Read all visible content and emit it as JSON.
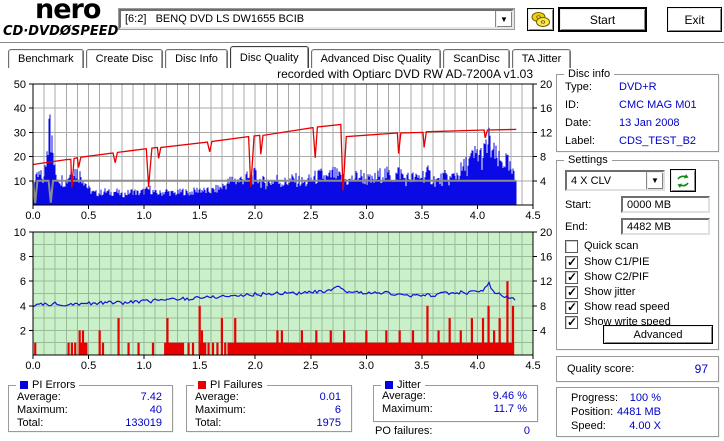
{
  "header": {
    "logo_line1": "nero",
    "logo_line2": "CD·DVDØSPEED",
    "drive": "[6:2]   BENQ DVD LS DW1655 BCIB",
    "start_button": "Start",
    "exit_button": "Exit"
  },
  "tabs": {
    "items": [
      "Benchmark",
      "Create Disc",
      "Disc Info",
      "Disc Quality",
      "Advanced Disc Quality",
      "ScanDisc",
      "TA Jitter"
    ],
    "active": "Disc Quality"
  },
  "chart_header": "recorded with Optiarc DVD RW AD-7200A   v1.03",
  "disc_info": {
    "title": "Disc info",
    "rows": [
      {
        "label": "Type:",
        "value": "DVD+R"
      },
      {
        "label": "ID:",
        "value": "CMC MAG M01"
      },
      {
        "label": "Date:",
        "value": "13 Jan 2008"
      },
      {
        "label": "Label:",
        "value": "CDS_TEST_B2"
      }
    ]
  },
  "settings": {
    "title": "Settings",
    "speed_select": "4 X CLV",
    "start_label": "Start:",
    "start_value": "0000 MB",
    "end_label": "End:",
    "end_value": "4482 MB",
    "checkboxes": [
      {
        "label": "Quick scan",
        "checked": false
      },
      {
        "label": "Show C1/PIE",
        "checked": true
      },
      {
        "label": "Show C2/PIF",
        "checked": true
      },
      {
        "label": "Show jitter",
        "checked": true
      },
      {
        "label": "Show read speed",
        "checked": true
      },
      {
        "label": "Show write speed",
        "checked": true
      }
    ],
    "advanced_button": "Advanced"
  },
  "quality": {
    "label": "Quality score:",
    "value": "97"
  },
  "stats": {
    "pi_errors": {
      "title": "PI Errors",
      "color": "#0000e0",
      "avg_label": "Average:",
      "avg": "7.42",
      "max_label": "Maximum:",
      "max": "40",
      "total_label": "Total:",
      "total": "133019"
    },
    "pi_failures": {
      "title": "PI Failures",
      "color": "#e80000",
      "avg_label": "Average:",
      "avg": "0.01",
      "max_label": "Maximum:",
      "max": "6",
      "total_label": "Total:",
      "total": "1975"
    },
    "jitter": {
      "title": "Jitter",
      "color": "#0000e0",
      "avg_label": "Average:",
      "avg": "9.46 %",
      "max_label": "Maximum:",
      "max": "11.7 %"
    },
    "po_failures": {
      "label": "PO failures:",
      "value": "0"
    }
  },
  "progress": {
    "rows": [
      {
        "label": "Progress:",
        "value": "100 %"
      },
      {
        "label": "Position:",
        "value": "4481 MB"
      },
      {
        "label": "Speed:",
        "value": "4.00 X"
      }
    ]
  },
  "chart_data": [
    {
      "type": "area",
      "title": "PI Errors / speed vs position (GB)",
      "x_max": 4.5,
      "data_end": 4.35,
      "x_ticks": [
        "0.0",
        "0.5",
        "1.0",
        "1.5",
        "2.0",
        "2.5",
        "3.0",
        "3.5",
        "4.0",
        "4.5"
      ],
      "left_axis": {
        "max": 50,
        "ticks": [
          10,
          20,
          30,
          40,
          50
        ]
      },
      "right_axis": {
        "max": 20,
        "ticks": [
          4,
          8,
          12,
          16,
          20
        ]
      },
      "grid": {
        "x_step": 0.1,
        "y_step_left": 10
      },
      "colors": {
        "pi_errors": "#0a0ae6",
        "write_speed": "#e80000",
        "read_speed": "#8c8c8c",
        "grid": "#a8a8a8",
        "bg": "#ffffff"
      },
      "pi_errors_dx": 0.05,
      "pi_errors": [
        9,
        15,
        13,
        40,
        16,
        13,
        12,
        19,
        16,
        14,
        8,
        6,
        6,
        7,
        6,
        7,
        5,
        6,
        7,
        6,
        7,
        8,
        6,
        6,
        7,
        6,
        6,
        7,
        6,
        7,
        8,
        7,
        7,
        8,
        9,
        11,
        13,
        12,
        14,
        13,
        15,
        12,
        11,
        12,
        13,
        11,
        12,
        13,
        12,
        11,
        13,
        14,
        15,
        13,
        16,
        14,
        13,
        12,
        14,
        15,
        13,
        12,
        14,
        16,
        15,
        14,
        17,
        13,
        14,
        13,
        15,
        16,
        13,
        12,
        14,
        13,
        15,
        17,
        20,
        23,
        26,
        24,
        32,
        25,
        21,
        23,
        17,
        12
      ],
      "write_speed": [
        [
          0,
          6.7
        ],
        [
          0.3,
          7.5
        ],
        [
          0.34,
          7.55
        ],
        [
          0.35,
          2.9
        ],
        [
          0.37,
          7.7
        ],
        [
          0.4,
          7.8
        ],
        [
          0.41,
          6.2
        ],
        [
          0.43,
          7.9
        ],
        [
          0.72,
          8.6
        ],
        [
          0.74,
          7.0
        ],
        [
          0.76,
          8.7
        ],
        [
          1.02,
          9.3
        ],
        [
          1.04,
          3.0
        ],
        [
          1.07,
          9.4
        ],
        [
          1.12,
          9.5
        ],
        [
          1.13,
          7.7
        ],
        [
          1.15,
          9.5
        ],
        [
          1.57,
          10.4
        ],
        [
          1.59,
          8.8
        ],
        [
          1.61,
          10.5
        ],
        [
          1.94,
          11.3
        ],
        [
          1.96,
          3.0
        ],
        [
          1.99,
          11.4
        ],
        [
          2.04,
          11.5
        ],
        [
          2.05,
          8.4
        ],
        [
          2.07,
          11.5
        ],
        [
          2.52,
          12.8
        ],
        [
          2.54,
          7.8
        ],
        [
          2.56,
          12.9
        ],
        [
          2.77,
          13.3
        ],
        [
          2.79,
          2.4
        ],
        [
          2.82,
          11.3
        ],
        [
          3.28,
          11.9
        ],
        [
          3.29,
          8.5
        ],
        [
          3.31,
          11.9
        ],
        [
          3.51,
          12.0
        ],
        [
          3.52,
          9.5
        ],
        [
          3.54,
          12.1
        ],
        [
          4.06,
          12.4
        ],
        [
          4.07,
          11.1
        ],
        [
          4.09,
          12.4
        ],
        [
          4.35,
          12.5
        ]
      ],
      "read_speed": [
        [
          0,
          4
        ],
        [
          0.02,
          0.3
        ],
        [
          0.04,
          4
        ],
        [
          0.14,
          4
        ],
        [
          0.16,
          0.4
        ],
        [
          0.18,
          4
        ],
        [
          4.35,
          4
        ]
      ]
    },
    {
      "type": "line",
      "title": "Jitter / PI Failures vs position (GB)",
      "x_max": 4.5,
      "data_end": 4.35,
      "x_ticks": [
        "0.0",
        "0.5",
        "1.0",
        "1.5",
        "2.0",
        "2.5",
        "3.0",
        "3.5",
        "4.0",
        "4.5"
      ],
      "left_axis": {
        "max": 10,
        "ticks": [
          2,
          4,
          6,
          8,
          10
        ]
      },
      "right_axis": {
        "max": 20,
        "ticks": [
          4,
          8,
          12,
          16,
          20
        ]
      },
      "grid": {
        "x_step": 0.1,
        "y_step_left": 1
      },
      "colors": {
        "jitter": "#1212d8",
        "pi_failures": "#e80000",
        "grid": "#9aba9a",
        "bg": "#c9f0c9"
      },
      "jitter_dx": 0.05,
      "jitter": [
        7.9,
        8.1,
        8.3,
        8.2,
        8.4,
        8.3,
        8.2,
        8.4,
        8.3,
        8.5,
        8.4,
        8.3,
        8.5,
        8.4,
        8.6,
        8.5,
        8.4,
        8.6,
        8.7,
        8.6,
        8.8,
        8.7,
        8.9,
        9.0,
        8.9,
        9.1,
        9.0,
        9.2,
        9.1,
        9.3,
        9.4,
        9.3,
        9.5,
        9.4,
        9.6,
        9.5,
        9.7,
        9.6,
        9.8,
        9.7,
        9.9,
        9.8,
        10.0,
        9.9,
        10.1,
        10.0,
        10.2,
        10.1,
        10.0,
        10.2,
        10.1,
        10.3,
        10.2,
        10.4,
        10.6,
        11.0,
        10.4,
        10.2,
        10.3,
        10.1,
        10.2,
        10.0,
        10.1,
        10.2,
        10.0,
        9.9,
        9.8,
        9.7,
        9.6,
        9.7,
        9.6,
        9.8,
        9.7,
        9.9,
        10.0,
        10.1,
        10.0,
        10.2,
        10.1,
        10.3,
        10.2,
        10.4,
        11.7,
        10.1,
        9.8,
        9.5,
        9.2,
        8.9
      ],
      "pif_bands": [
        [
          0.41,
          0.49
        ],
        [
          1.18,
          1.36
        ],
        [
          1.49,
          1.56
        ],
        [
          1.75,
          4.33
        ]
      ],
      "pif_bars": [
        [
          0.02,
          1
        ],
        [
          0.32,
          1
        ],
        [
          0.35,
          1
        ],
        [
          0.38,
          1
        ],
        [
          0.42,
          2
        ],
        [
          0.45,
          2
        ],
        [
          0.47,
          1
        ],
        [
          0.6,
          2
        ],
        [
          0.63,
          1
        ],
        [
          0.77,
          3
        ],
        [
          0.86,
          1
        ],
        [
          0.95,
          1
        ],
        [
          1.08,
          1
        ],
        [
          1.21,
          3
        ],
        [
          1.4,
          1
        ],
        [
          1.44,
          1
        ],
        [
          1.5,
          4
        ],
        [
          1.52,
          2
        ],
        [
          1.58,
          1
        ],
        [
          1.62,
          1
        ],
        [
          1.66,
          1
        ],
        [
          1.7,
          3
        ],
        [
          1.73,
          1
        ],
        [
          1.82,
          3
        ],
        [
          2.2,
          2
        ],
        [
          2.24,
          2
        ],
        [
          2.42,
          2
        ],
        [
          2.55,
          2
        ],
        [
          2.68,
          2
        ],
        [
          2.8,
          2
        ],
        [
          3.0,
          2
        ],
        [
          3.18,
          2
        ],
        [
          3.3,
          2
        ],
        [
          3.42,
          2
        ],
        [
          3.55,
          4
        ],
        [
          3.65,
          2
        ],
        [
          3.75,
          3
        ],
        [
          3.85,
          2
        ],
        [
          3.95,
          3
        ],
        [
          4.05,
          3
        ],
        [
          4.1,
          4
        ],
        [
          4.15,
          2
        ],
        [
          4.2,
          3
        ],
        [
          4.27,
          6
        ],
        [
          4.32,
          4
        ]
      ]
    }
  ]
}
